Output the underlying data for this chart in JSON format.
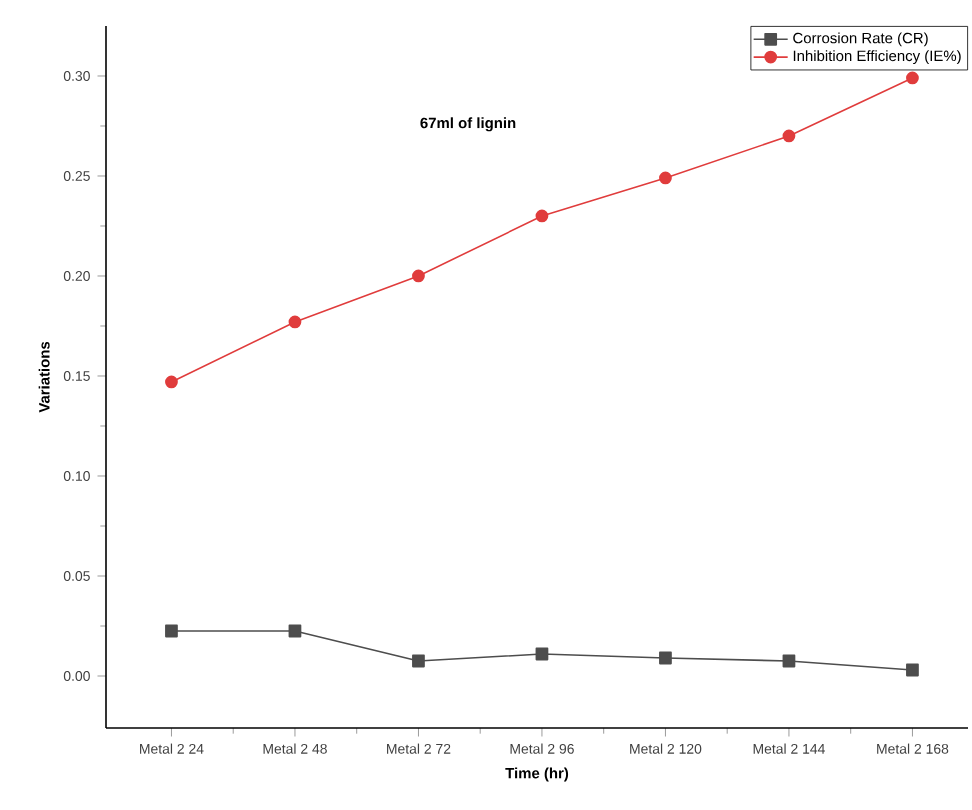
{
  "chart_data": {
    "type": "line",
    "xlabel": "Time (hr)",
    "ylabel": "Variations",
    "annotations": [
      "67ml of lignin"
    ],
    "categories": [
      "Metal 2 24",
      "Metal 2 48",
      "Metal 2 72",
      "Metal 2 96",
      "Metal 2 120",
      "Metal 2 144",
      "Metal 2 168"
    ],
    "series": [
      {
        "name": "Corrosion Rate (CR)",
        "color": "#4d4d4d",
        "marker": "square",
        "values": [
          0.0225,
          0.0225,
          0.0075,
          0.011,
          0.009,
          0.0075,
          0.003
        ]
      },
      {
        "name": "Inhibition Efficiency (IE%)",
        "color": "#e03c3c",
        "marker": "circle",
        "values": [
          0.147,
          0.177,
          0.2,
          0.23,
          0.249,
          0.27,
          0.299
        ]
      }
    ],
    "ylim": [
      -0.026,
      0.325
    ],
    "yticks": [
      {
        "value": 0,
        "label": "0.00"
      },
      {
        "value": 0.05,
        "label": "0.05"
      },
      {
        "value": 0.1,
        "label": "0.10"
      },
      {
        "value": 0.15,
        "label": "0.15"
      },
      {
        "value": 0.2,
        "label": "0.20"
      },
      {
        "value": 0.25,
        "label": "0.25"
      },
      {
        "value": 0.3,
        "label": "0.30"
      }
    ],
    "legend": "top right",
    "grid": false,
    "line_style": "solid"
  }
}
